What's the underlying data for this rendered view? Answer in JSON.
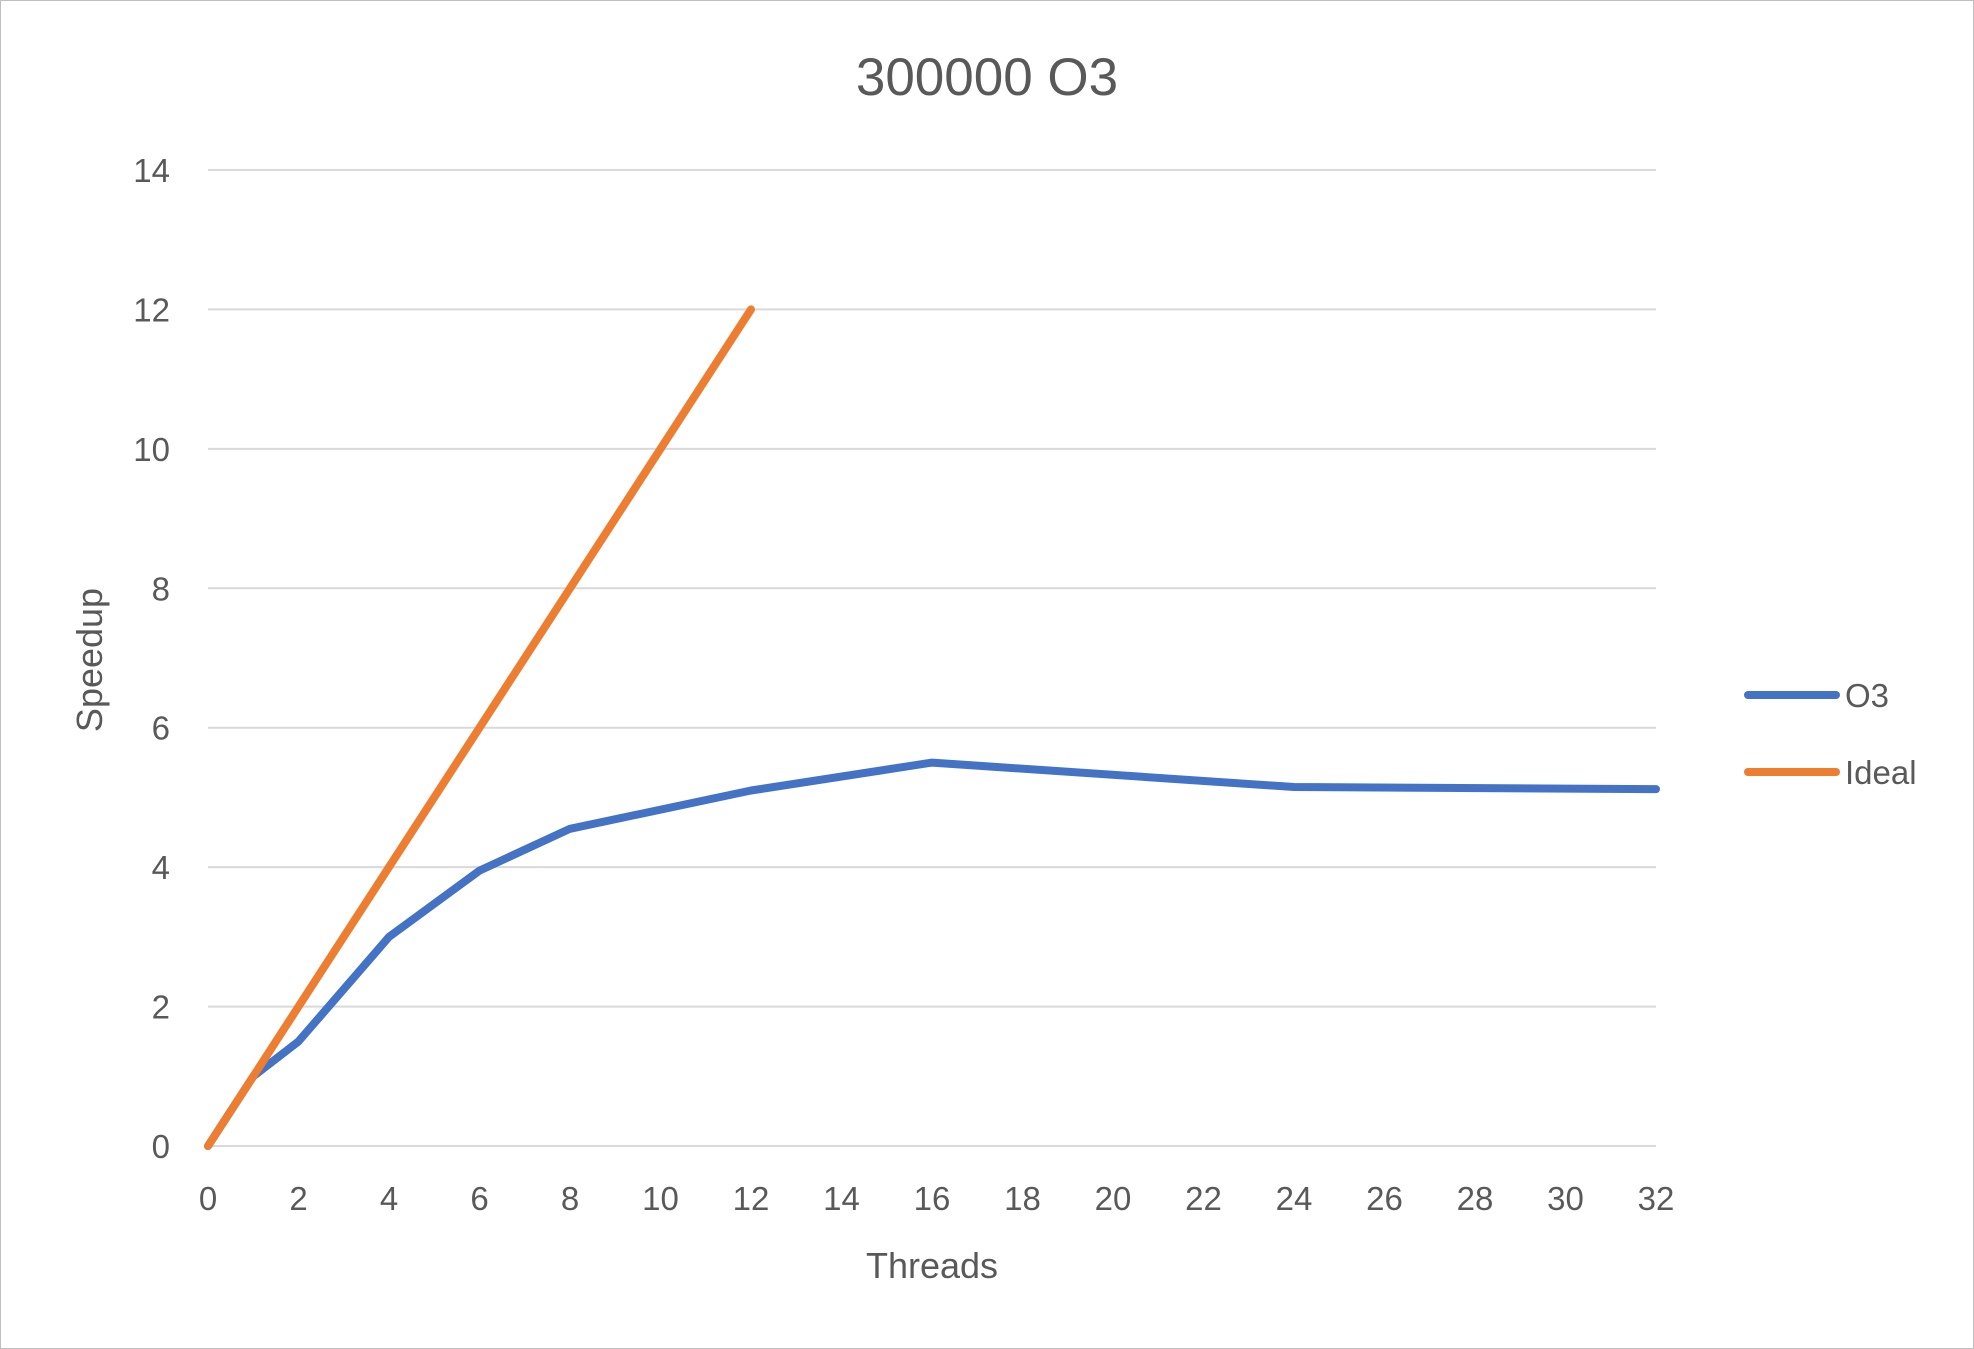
{
  "chart_data": {
    "type": "line",
    "title": "300000 O3",
    "xlabel": "Threads",
    "ylabel": "Speedup",
    "xlim": [
      0,
      32
    ],
    "ylim": [
      0,
      14
    ],
    "x_ticks": [
      "0",
      "2",
      "4",
      "6",
      "8",
      "10",
      "12",
      "14",
      "16",
      "18",
      "20",
      "22",
      "24",
      "26",
      "28",
      "30",
      "32"
    ],
    "y_ticks": [
      "0",
      "2",
      "4",
      "6",
      "8",
      "10",
      "12",
      "14"
    ],
    "grid": true,
    "legend_position": "right",
    "series": [
      {
        "name": "O3",
        "color": "#4472C4",
        "x": [
          0,
          1,
          2,
          4,
          6,
          8,
          12,
          16,
          24,
          32
        ],
        "y": [
          0,
          1.0,
          1.5,
          3.0,
          3.95,
          4.55,
          5.1,
          5.5,
          5.15,
          5.12
        ]
      },
      {
        "name": "Ideal",
        "color": "#ED7D31",
        "x": [
          0,
          1,
          2,
          4,
          8,
          12
        ],
        "y": [
          0,
          1,
          2,
          4,
          8,
          12
        ]
      }
    ]
  }
}
